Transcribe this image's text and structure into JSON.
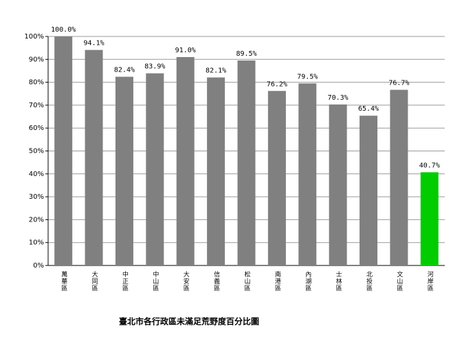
{
  "chart_data": {
    "type": "bar",
    "title": "臺北市各行政區未滿足荒野度百分比圖",
    "categories": [
      "萬華區",
      "大同區",
      "中正區",
      "中山區",
      "大安區",
      "信義區",
      "松山區",
      "南港區",
      "內湖區",
      "士林區",
      "北投區",
      "文山區",
      "河岸區"
    ],
    "values": [
      100.0,
      94.1,
      82.4,
      83.9,
      91.0,
      82.1,
      89.5,
      76.2,
      79.5,
      70.3,
      65.4,
      76.7,
      40.7
    ],
    "value_labels": [
      "100.0%",
      "94.1%",
      "82.4%",
      "83.9%",
      "91.0%",
      "82.1%",
      "89.5%",
      "76.2%",
      "79.5%",
      "70.3%",
      "65.4%",
      "76.7%",
      "40.7%"
    ],
    "colors": [
      "#808080",
      "#808080",
      "#808080",
      "#808080",
      "#808080",
      "#808080",
      "#808080",
      "#808080",
      "#808080",
      "#808080",
      "#808080",
      "#808080",
      "#00cc00"
    ],
    "ylim": [
      0,
      100
    ],
    "yticks": [
      {
        "value": 0,
        "label": "0%"
      },
      {
        "value": 10,
        "label": "10%"
      },
      {
        "value": 20,
        "label": "20%"
      },
      {
        "value": 30,
        "label": "30%"
      },
      {
        "value": 40,
        "label": "40%"
      },
      {
        "value": 50,
        "label": "50%"
      },
      {
        "value": 60,
        "label": "60%"
      },
      {
        "value": 70,
        "label": "70%"
      },
      {
        "value": 80,
        "label": "80%"
      },
      {
        "value": 90,
        "label": "90%"
      },
      {
        "value": 100,
        "label": "100%"
      }
    ],
    "grid": true
  }
}
